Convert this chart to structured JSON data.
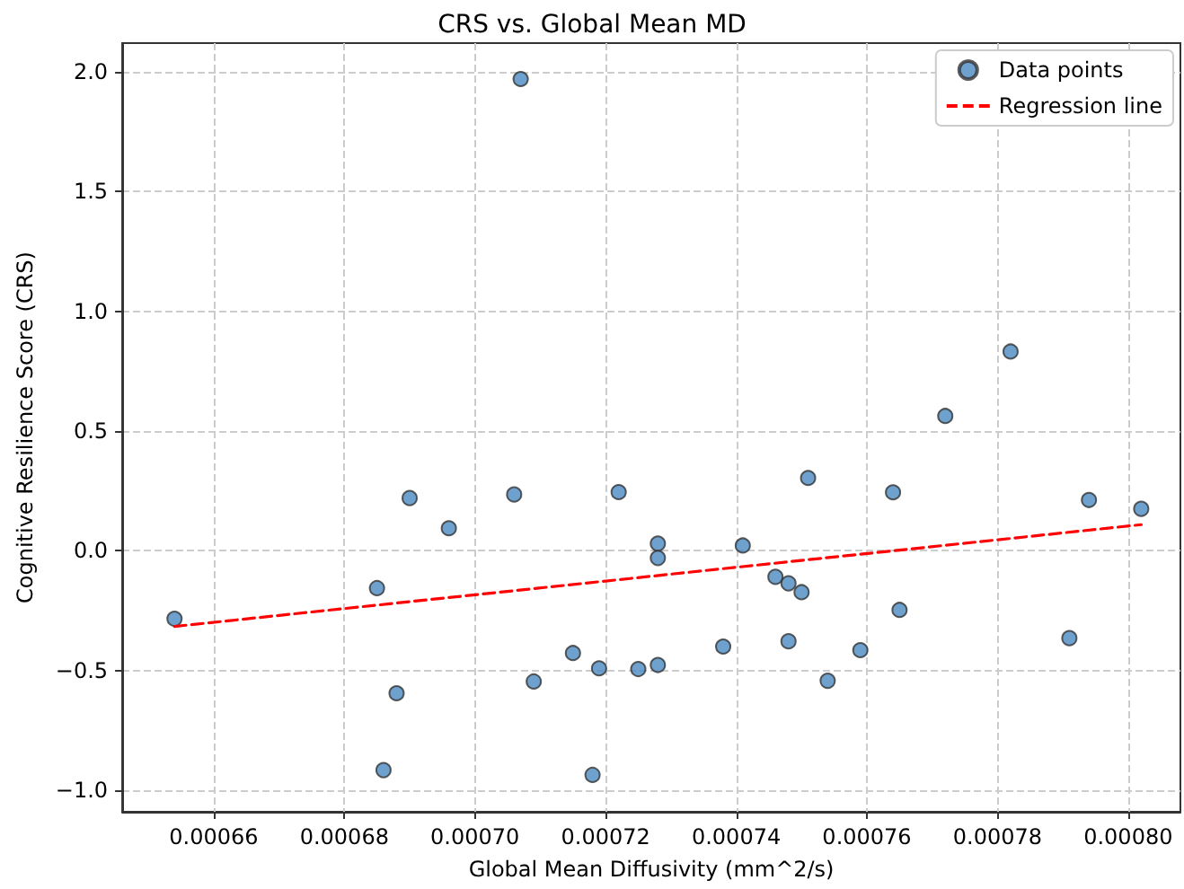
{
  "chart_data": {
    "type": "scatter",
    "title": "CRS vs. Global Mean MD",
    "xlabel": "Global Mean Diffusivity (mm^2/s)",
    "ylabel": "Cognitive Resilience Score (CRS)",
    "xlim": [
      0.000646,
      0.000808
    ],
    "ylim": [
      -1.09,
      2.12
    ],
    "xticks": [
      0.00066,
      0.00068,
      {
        "value": 0.0007,
        "label": "0.00070"
      },
      0.00072,
      0.00074,
      0.00076,
      0.00078,
      {
        "value": 0.0008,
        "label": "0.00080"
      }
    ],
    "yticks": [
      {
        "value": -1,
        "label": "−1.0"
      },
      {
        "value": -0.5,
        "label": "−0.5"
      },
      {
        "value": 0,
        "label": "0.0"
      },
      {
        "value": 0.5,
        "label": "0.5"
      },
      {
        "value": 1,
        "label": "1.0"
      },
      {
        "value": 1.5,
        "label": "1.5"
      },
      {
        "value": 2,
        "label": "2.0"
      }
    ],
    "grid": true,
    "legend": "top right",
    "series": [
      {
        "name": "Data points",
        "color": "#4a8ac0",
        "marker": "circle",
        "x": [
          0.000707,
          0.00069,
          0.000706,
          0.000722,
          0.000696,
          0.000728,
          0.000728,
          0.000685,
          0.000654,
          0.000715,
          0.000719,
          0.000725,
          0.000728,
          0.000709,
          0.000688,
          0.000686,
          0.000718,
          0.000741,
          0.000751,
          0.000746,
          0.000748,
          0.00075,
          0.000738,
          0.000748,
          0.000754,
          0.000759,
          0.000764,
          0.000765,
          0.000772,
          0.000782,
          0.000791,
          0.000794,
          0.000802
        ],
        "values": [
          1.97,
          0.22,
          0.235,
          0.245,
          0.094,
          0.03,
          -0.03,
          -0.156,
          -0.284,
          -0.427,
          -0.491,
          -0.494,
          -0.477,
          -0.546,
          -0.595,
          -0.916,
          -0.936,
          0.022,
          0.304,
          -0.109,
          -0.136,
          -0.173,
          -0.4,
          -0.378,
          -0.543,
          -0.415,
          0.244,
          -0.247,
          0.563,
          0.832,
          -0.365,
          0.212,
          0.175
        ]
      },
      {
        "name": "Regression line",
        "type": "line",
        "color": "#ff0000",
        "marker": "none",
        "line_style": "dashed",
        "x": [
          0.000654,
          0.000802
        ],
        "values": [
          -0.316,
          0.109
        ]
      }
    ]
  }
}
